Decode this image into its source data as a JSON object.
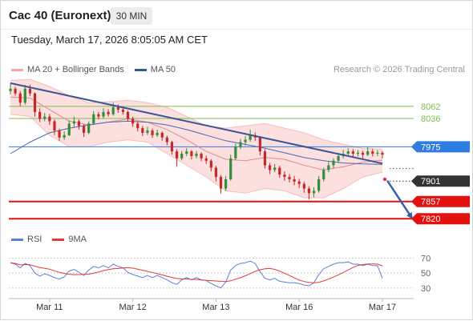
{
  "header": {
    "title": "Cac 40 (Euronext)",
    "interval": "30 MIN",
    "datetime": "Tuesday, March 17, 2026 8:05:05 AM CET"
  },
  "legend": {
    "ma20_bb": "MA 20 + Bollinger Bands",
    "ma50": "MA 50",
    "copyright": "Research © 2026 Trading Central"
  },
  "rsi_legend": {
    "rsi": "RSI",
    "ma": "9MA"
  },
  "colors": {
    "candle_up": "#2f8f3a",
    "candle_down": "#c62828",
    "bb_fill": "#fbd9d9",
    "bb_edge": "#f6bcbc",
    "ma20": "#e58a8a",
    "ma50": "#4a67b0",
    "trendline": "#3b5596",
    "forecast_arrow": "#3a5fa8",
    "forecast_dot": "#e53935",
    "rsi": "#5b7fd8",
    "rsi_ma": "#e53935",
    "legend_bb": "#f4a6a6",
    "legend_ma50": "#3b5596"
  },
  "chart_data": [
    {
      "type": "candlestick",
      "ylim": [
        7810,
        8117
      ],
      "x_ticks": [
        {
          "label": "Mar 11",
          "index": 8
        },
        {
          "label": "Mar 12",
          "index": 25
        },
        {
          "label": "Mar 13",
          "index": 42
        },
        {
          "label": "Mar 16",
          "index": 59
        },
        {
          "label": "Mar 17",
          "index": 76
        }
      ],
      "ohlc": [
        [
          8095,
          8112,
          8088,
          8100
        ],
        [
          8100,
          8104,
          8085,
          8090
        ],
        [
          8090,
          8095,
          8062,
          8070
        ],
        [
          8070,
          8108,
          8066,
          8100
        ],
        [
          8100,
          8109,
          8084,
          8090
        ],
        [
          8090,
          8092,
          8040,
          8050
        ],
        [
          8050,
          8058,
          8028,
          8035
        ],
        [
          8035,
          8048,
          8030,
          8040
        ],
        [
          8040,
          8046,
          8022,
          8030
        ],
        [
          8030,
          8034,
          8000,
          8010
        ],
        [
          8010,
          8014,
          7988,
          7995
        ],
        [
          7995,
          8008,
          7990,
          8000
        ],
        [
          8000,
          8032,
          7998,
          8025
        ],
        [
          8025,
          8040,
          8018,
          8030
        ],
        [
          8030,
          8034,
          8012,
          8020
        ],
        [
          8020,
          8024,
          7996,
          8005
        ],
        [
          8005,
          8030,
          8002,
          8025
        ],
        [
          8025,
          8052,
          8022,
          8045
        ],
        [
          8045,
          8050,
          8034,
          8040
        ],
        [
          8040,
          8058,
          8036,
          8050
        ],
        [
          8050,
          8056,
          8040,
          8045
        ],
        [
          8045,
          8070,
          8042,
          8060
        ],
        [
          8060,
          8066,
          8048,
          8055
        ],
        [
          8055,
          8060,
          8044,
          8050
        ],
        [
          8050,
          8053,
          8030,
          8035
        ],
        [
          8035,
          8040,
          8018,
          8025
        ],
        [
          8025,
          8030,
          8008,
          8015
        ],
        [
          8015,
          8020,
          7998,
          8005
        ],
        [
          8005,
          8018,
          8000,
          8010
        ],
        [
          8010,
          8014,
          7994,
          8000
        ],
        [
          8000,
          8012,
          7996,
          8005
        ],
        [
          8005,
          8008,
          7988,
          7995
        ],
        [
          7995,
          7999,
          7978,
          7985
        ],
        [
          7985,
          7988,
          7958,
          7965
        ],
        [
          7965,
          7970,
          7932,
          7950
        ],
        [
          7950,
          7966,
          7946,
          7960
        ],
        [
          7960,
          7972,
          7955,
          7965
        ],
        [
          7965,
          7968,
          7948,
          7955
        ],
        [
          7955,
          7966,
          7950,
          7960
        ],
        [
          7960,
          7963,
          7944,
          7950
        ],
        [
          7950,
          7956,
          7938,
          7945
        ],
        [
          7945,
          7948,
          7922,
          7930
        ],
        [
          7930,
          7934,
          7900,
          7910
        ],
        [
          7910,
          7914,
          7874,
          7885
        ],
        [
          7885,
          7912,
          7880,
          7905
        ],
        [
          7905,
          7958,
          7902,
          7950
        ],
        [
          7950,
          7982,
          7946,
          7975
        ],
        [
          7975,
          7992,
          7970,
          7985
        ],
        [
          7985,
          7998,
          7978,
          7990
        ],
        [
          7990,
          8012,
          7986,
          8000
        ],
        [
          8000,
          8006,
          7988,
          7995
        ],
        [
          7995,
          7998,
          7956,
          7965
        ],
        [
          7965,
          7970,
          7928,
          7935
        ],
        [
          7935,
          7940,
          7916,
          7925
        ],
        [
          7925,
          7938,
          7920,
          7930
        ],
        [
          7930,
          7934,
          7908,
          7915
        ],
        [
          7915,
          7922,
          7902,
          7910
        ],
        [
          7910,
          7916,
          7898,
          7905
        ],
        [
          7905,
          7912,
          7892,
          7900
        ],
        [
          7900,
          7906,
          7886,
          7895
        ],
        [
          7895,
          7900,
          7876,
          7885
        ],
        [
          7885,
          7890,
          7862,
          7875
        ],
        [
          7875,
          7888,
          7866,
          7880
        ],
        [
          7880,
          7912,
          7876,
          7905
        ],
        [
          7905,
          7930,
          7900,
          7925
        ],
        [
          7925,
          7942,
          7920,
          7935
        ],
        [
          7935,
          7950,
          7928,
          7945
        ],
        [
          7945,
          7962,
          7940,
          7955
        ],
        [
          7955,
          7968,
          7950,
          7960
        ],
        [
          7960,
          7972,
          7954,
          7965
        ],
        [
          7965,
          7970,
          7952,
          7960
        ],
        [
          7960,
          7968,
          7954,
          7962
        ],
        [
          7962,
          7966,
          7950,
          7958
        ],
        [
          7958,
          7974,
          7955,
          7965
        ],
        [
          7965,
          7970,
          7954,
          7960
        ],
        [
          7960,
          7968,
          7955,
          7962
        ],
        [
          7962,
          7966,
          7950,
          7958
        ]
      ],
      "overlays": {
        "bb_upper": [
          [
            0,
            8118
          ],
          [
            4,
            8120
          ],
          [
            8,
            8105
          ],
          [
            12,
            8085
          ],
          [
            16,
            8070
          ],
          [
            20,
            8072
          ],
          [
            24,
            8075
          ],
          [
            28,
            8070
          ],
          [
            32,
            8060
          ],
          [
            36,
            8040
          ],
          [
            40,
            8020
          ],
          [
            44,
            8015
          ],
          [
            48,
            8020
          ],
          [
            52,
            8025
          ],
          [
            56,
            8015
          ],
          [
            60,
            8005
          ],
          [
            64,
            7990
          ],
          [
            68,
            7980
          ],
          [
            72,
            7972
          ],
          [
            76,
            7970
          ]
        ],
        "bb_lower": [
          [
            0,
            8045
          ],
          [
            4,
            8040
          ],
          [
            8,
            8000
          ],
          [
            12,
            7975
          ],
          [
            16,
            7975
          ],
          [
            20,
            7985
          ],
          [
            24,
            7990
          ],
          [
            28,
            7985
          ],
          [
            32,
            7960
          ],
          [
            36,
            7935
          ],
          [
            40,
            7910
          ],
          [
            44,
            7880
          ],
          [
            48,
            7875
          ],
          [
            52,
            7885
          ],
          [
            56,
            7880
          ],
          [
            60,
            7865
          ],
          [
            64,
            7865
          ],
          [
            68,
            7885
          ],
          [
            72,
            7910
          ],
          [
            76,
            7920
          ]
        ],
        "ma20": [
          [
            0,
            8082
          ],
          [
            4,
            8080
          ],
          [
            8,
            8055
          ],
          [
            12,
            8030
          ],
          [
            16,
            8022
          ],
          [
            20,
            8028
          ],
          [
            24,
            8035
          ],
          [
            28,
            8028
          ],
          [
            32,
            8012
          ],
          [
            36,
            7990
          ],
          [
            40,
            7965
          ],
          [
            44,
            7948
          ],
          [
            48,
            7945
          ],
          [
            52,
            7952
          ],
          [
            56,
            7948
          ],
          [
            60,
            7935
          ],
          [
            64,
            7925
          ],
          [
            68,
            7932
          ],
          [
            72,
            7942
          ],
          [
            76,
            7946
          ]
        ],
        "ma50": [
          [
            0,
            7960
          ],
          [
            4,
            7985
          ],
          [
            8,
            8005
          ],
          [
            12,
            8015
          ],
          [
            16,
            8022
          ],
          [
            20,
            8028
          ],
          [
            24,
            8030
          ],
          [
            28,
            8028
          ],
          [
            32,
            8022
          ],
          [
            36,
            8012
          ],
          [
            40,
            8000
          ],
          [
            44,
            7988
          ],
          [
            48,
            7980
          ],
          [
            52,
            7972
          ],
          [
            56,
            7962
          ],
          [
            60,
            7952
          ],
          [
            64,
            7945
          ],
          [
            68,
            7940
          ],
          [
            72,
            7938
          ],
          [
            76,
            7937
          ]
        ]
      },
      "trendline": {
        "from_index": 0,
        "from_value": 8112,
        "to_index": 76,
        "to_value": 7939
      },
      "levels": [
        {
          "value": 8062,
          "label": "8062",
          "line": "solid",
          "tag": "text",
          "color": "#7cbf4e",
          "weight": "thin"
        },
        {
          "value": 8036,
          "label": "8036",
          "line": "solid",
          "tag": "text",
          "color": "#7cbf4e",
          "weight": "thin"
        },
        {
          "value": 7975,
          "label": "7975",
          "line": "solid",
          "tag": "pill",
          "color": "#2f7de1",
          "weight": "thin"
        },
        {
          "value": 7928,
          "label": "",
          "line": "dotted",
          "tag": "none",
          "color": "#555555",
          "weight": "thin"
        },
        {
          "value": 7901,
          "label": "7901",
          "line": "dotted",
          "tag": "pill",
          "color": "#333333",
          "weight": "thin"
        },
        {
          "value": 7857,
          "label": "7857",
          "line": "solid",
          "tag": "pill",
          "color": "#e3110f",
          "weight": "strong"
        },
        {
          "value": 7820,
          "label": "7820",
          "line": "solid",
          "tag": "pill",
          "color": "#e3110f",
          "weight": "strong"
        }
      ],
      "forecast_arrow": {
        "from_index": 77,
        "from_value": 7902,
        "to_index": 82,
        "to_value": 7822,
        "dot_index": 76.5,
        "dot_value": 7905
      }
    },
    {
      "type": "line",
      "ylim": [
        18,
        77
      ],
      "levels": [
        70,
        50,
        30
      ],
      "series": [
        {
          "name": "RSI",
          "values": [
            64,
            62,
            57,
            63,
            60,
            50,
            46,
            49,
            47,
            44,
            42,
            45,
            53,
            55,
            51,
            47,
            54,
            59,
            57,
            60,
            57,
            62,
            59,
            57,
            51,
            48,
            46,
            44,
            47,
            44,
            47,
            44,
            41,
            37,
            35,
            41,
            44,
            41,
            44,
            41,
            40,
            36,
            33,
            30,
            38,
            54,
            60,
            63,
            64,
            66,
            63,
            52,
            43,
            41,
            43,
            39,
            38,
            37,
            37,
            36,
            34,
            33,
            37,
            48,
            56,
            59,
            62,
            64,
            64,
            65,
            62,
            62,
            60,
            62,
            60,
            60,
            43
          ]
        },
        {
          "name": "9MA",
          "period": 9
        }
      ]
    }
  ]
}
